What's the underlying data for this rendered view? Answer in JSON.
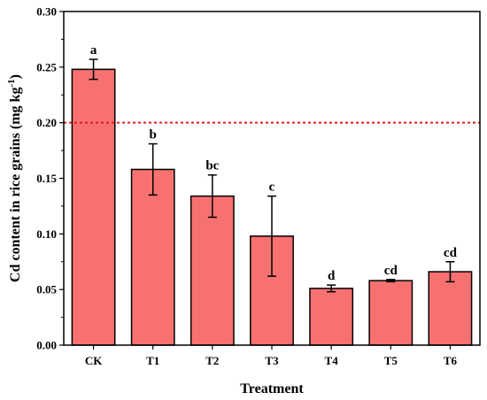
{
  "chart_data": {
    "type": "bar",
    "categories": [
      "CK",
      "T1",
      "T2",
      "T3",
      "T4",
      "T5",
      "T6"
    ],
    "values": [
      0.248,
      0.158,
      0.134,
      0.098,
      0.051,
      0.058,
      0.066
    ],
    "errors": [
      0.009,
      0.023,
      0.019,
      0.036,
      0.003,
      0.001,
      0.009
    ],
    "significance": [
      "a",
      "b",
      "bc",
      "c",
      "d",
      "cd",
      "cd"
    ],
    "xlabel": "Treatment",
    "ylabel_main": "Cd content in rice grains (mg kg",
    "ylabel_sup": "-1",
    "ylabel_end": ")",
    "ylim": [
      0.0,
      0.3
    ],
    "yticks": [
      "0.00",
      "0.05",
      "0.10",
      "0.15",
      "0.20",
      "0.25",
      "0.30"
    ],
    "threshold": 0.2,
    "colors": {
      "bar_fill": "#f87171",
      "bar_stroke": "#000000",
      "threshold_line": "#e31a1c"
    },
    "grid": false,
    "legend": false
  }
}
